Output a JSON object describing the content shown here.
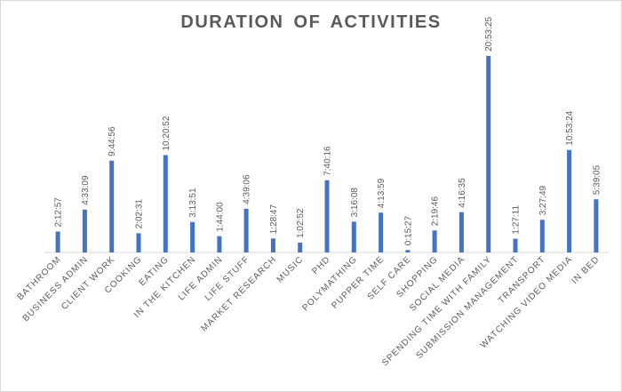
{
  "chart_data": {
    "type": "bar",
    "title": "DURATION  OF ACTIVITIES",
    "categories": [
      "BATHROOM",
      "BUSINESS ADMIN",
      "CLIENT WORK",
      "COOKING",
      "EATING",
      "IN THE KITCHEN",
      "LIFE ADMIN",
      "LIFE STUFF",
      "MARKET RESEARCH",
      "MUSIC",
      "PHD",
      "POLYMATHING",
      "PUPPER TIME",
      "SELF CARE",
      "SHOPPING",
      "SOCIAL MEDIA",
      "SPENDING TIME WITH FAMILY",
      "SUBMISSION MANAGEMENT",
      "TRANSPORT",
      "WATCHING VIDEO MEDIA",
      "IN BED"
    ],
    "data_labels": [
      "2:12:57",
      "4:33:09",
      "9:44:56",
      "2:02:31",
      "10:20:52",
      "3:13:51",
      "1:44:00",
      "4:39:06",
      "1:28:47",
      "1:02:52",
      "7:40:16",
      "3:16:08",
      "4:13:59",
      "0:15:27",
      "2:19:46",
      "4:16:35",
      "20:53:25",
      "1:27:11",
      "3:27:49",
      "10:53:24",
      "5:39:05"
    ],
    "values_hours": [
      2.2158,
      4.5525,
      9.7489,
      2.0419,
      10.3478,
      3.2308,
      1.7333,
      4.6517,
      1.4797,
      1.0478,
      7.6711,
      3.2689,
      4.2331,
      0.2575,
      2.3294,
      4.2764,
      20.8903,
      1.4531,
      3.4636,
      10.89,
      5.6514
    ],
    "ylim": [
      0,
      24
    ],
    "bar_color": "#4472c4",
    "axis_color": "#d9d9d9",
    "grid": false,
    "legend": false
  }
}
